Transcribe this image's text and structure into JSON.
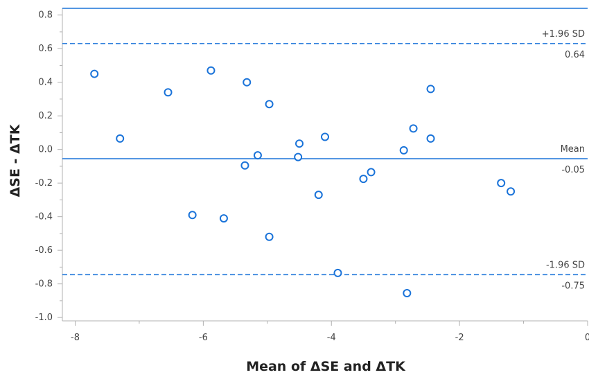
{
  "chart_data": {
    "type": "scatter",
    "xlabel": "Mean of ΔSE and ΔTK",
    "ylabel": "ΔSE - ΔTK",
    "xlim": [
      -8.2,
      0
    ],
    "ylim": [
      -1.02,
      0.84
    ],
    "x_ticks": [
      -8,
      -6,
      -4,
      -2,
      0
    ],
    "x_tick_labels": [
      "-8",
      "-6",
      "-4",
      "-2",
      "0"
    ],
    "y_ticks": [
      -1.0,
      -0.8,
      -0.6,
      -0.4,
      -0.2,
      0.0,
      0.2,
      0.4,
      0.6,
      0.8
    ],
    "y_tick_labels": [
      "-1.0",
      "-0.8",
      "-0.6",
      "-0.4",
      "-0.2",
      "0.0",
      "0.2",
      "0.4",
      "0.6",
      "0.8"
    ],
    "points": [
      {
        "x": -7.7,
        "y": 0.45
      },
      {
        "x": -7.3,
        "y": 0.065
      },
      {
        "x": -6.55,
        "y": 0.34
      },
      {
        "x": -6.17,
        "y": -0.39
      },
      {
        "x": -5.88,
        "y": 0.47
      },
      {
        "x": -5.68,
        "y": -0.41
      },
      {
        "x": -5.35,
        "y": -0.095
      },
      {
        "x": -5.32,
        "y": 0.4
      },
      {
        "x": -5.15,
        "y": -0.035
      },
      {
        "x": -4.97,
        "y": 0.27
      },
      {
        "x": -4.97,
        "y": -0.52
      },
      {
        "x": -4.52,
        "y": -0.045
      },
      {
        "x": -4.5,
        "y": 0.035
      },
      {
        "x": -4.2,
        "y": -0.27
      },
      {
        "x": -4.1,
        "y": 0.075
      },
      {
        "x": -3.9,
        "y": -0.735
      },
      {
        "x": -3.5,
        "y": -0.175
      },
      {
        "x": -3.38,
        "y": -0.135
      },
      {
        "x": -2.87,
        "y": -0.005
      },
      {
        "x": -2.82,
        "y": -0.855
      },
      {
        "x": -2.72,
        "y": 0.125
      },
      {
        "x": -2.45,
        "y": 0.36
      },
      {
        "x": -2.45,
        "y": 0.065
      },
      {
        "x": -1.35,
        "y": -0.2
      },
      {
        "x": -1.2,
        "y": -0.25
      }
    ],
    "reference_lines": [
      {
        "id": "upper",
        "y": 0.63,
        "style": "dashed",
        "label_above": "+1.96 SD",
        "label_below": "0.64"
      },
      {
        "id": "mean",
        "y": -0.055,
        "style": "solid",
        "label_above": "Mean",
        "label_below": "-0.05"
      },
      {
        "id": "lower",
        "y": -0.745,
        "style": "dashed",
        "label_above": "-1.96 SD",
        "label_below": "-0.75"
      }
    ],
    "colors": {
      "points": "#1a73d9",
      "lines": "#1a73d9",
      "axis": "#b0b0b0",
      "text": "#444444"
    }
  }
}
